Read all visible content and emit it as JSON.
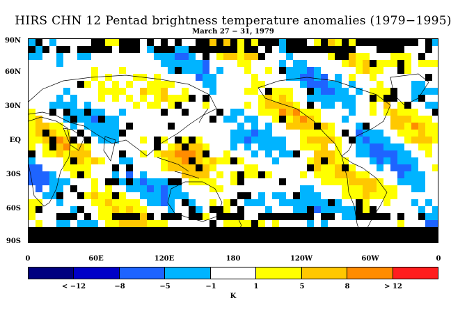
{
  "title": "HIRS CHN 12 Pentad brightness temperature anomalies (1979−1995)",
  "subtitle": "March 27 − 31, 1979",
  "lat_labels": [
    "90N",
    "60N",
    "30N",
    "EQ",
    "30S",
    "60S",
    "90S"
  ],
  "lon_labels": [
    "0",
    "60E",
    "120E",
    "180",
    "120W",
    "60W",
    "0"
  ],
  "colorbar": {
    "colors": [
      "#000080",
      "#0000c8",
      "#1e64ff",
      "#00b4ff",
      "#ffffff",
      "#ffff00",
      "#ffc800",
      "#ff8c00",
      "#ff1e1e"
    ],
    "labels": [
      "< −12",
      "−8",
      "−5",
      "−1",
      "1",
      "5",
      "8",
      "> 12"
    ],
    "units": "K"
  },
  "colors": {
    "missing": "#000000",
    "coast": "#000000"
  }
}
